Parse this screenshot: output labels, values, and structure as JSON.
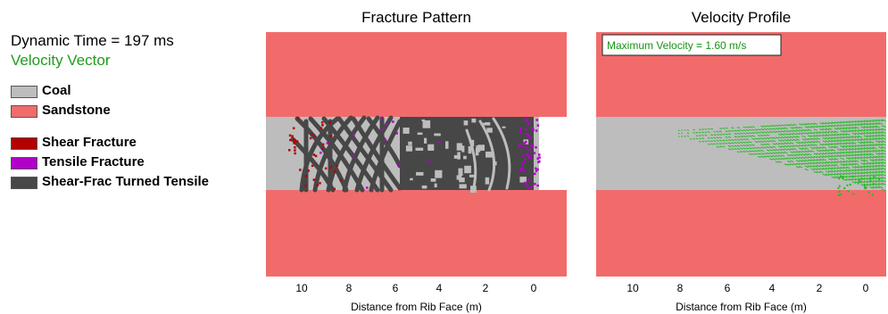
{
  "legend": {
    "time_label": "Dynamic Time = 197 ms",
    "vector_label": "Velocity Vector",
    "items": [
      {
        "label": "Coal",
        "color": "#bdbdbd"
      },
      {
        "label": "Sandstone",
        "color": "#f26b6b"
      },
      {
        "label": "Shear Fracture",
        "color": "#b30000"
      },
      {
        "label": "Tensile Fracture",
        "color": "#b000c8"
      },
      {
        "label": "Shear-Frac Turned Tensile",
        "color": "#474747"
      }
    ]
  },
  "colors": {
    "coal": "#bdbdbd",
    "sandstone": "#f26b6b",
    "shear": "#b30000",
    "tensile": "#b000c8",
    "shear_tensile": "#474747",
    "velocity": "#22bb22",
    "velocity_text": "#149414"
  },
  "panels": [
    {
      "title": "Fracture Pattern",
      "xlabel": "Distance from Rib Face (m)",
      "ticks": [
        "10",
        "8",
        "6",
        "4",
        "2",
        "0"
      ]
    },
    {
      "title": "Velocity Profile",
      "xlabel": "Distance from Rib Face (m)",
      "ticks": [
        "10",
        "8",
        "6",
        "4",
        "2",
        "0"
      ],
      "max_velocity_label": "Maximum Velocity = 1.60 m/s"
    }
  ]
}
